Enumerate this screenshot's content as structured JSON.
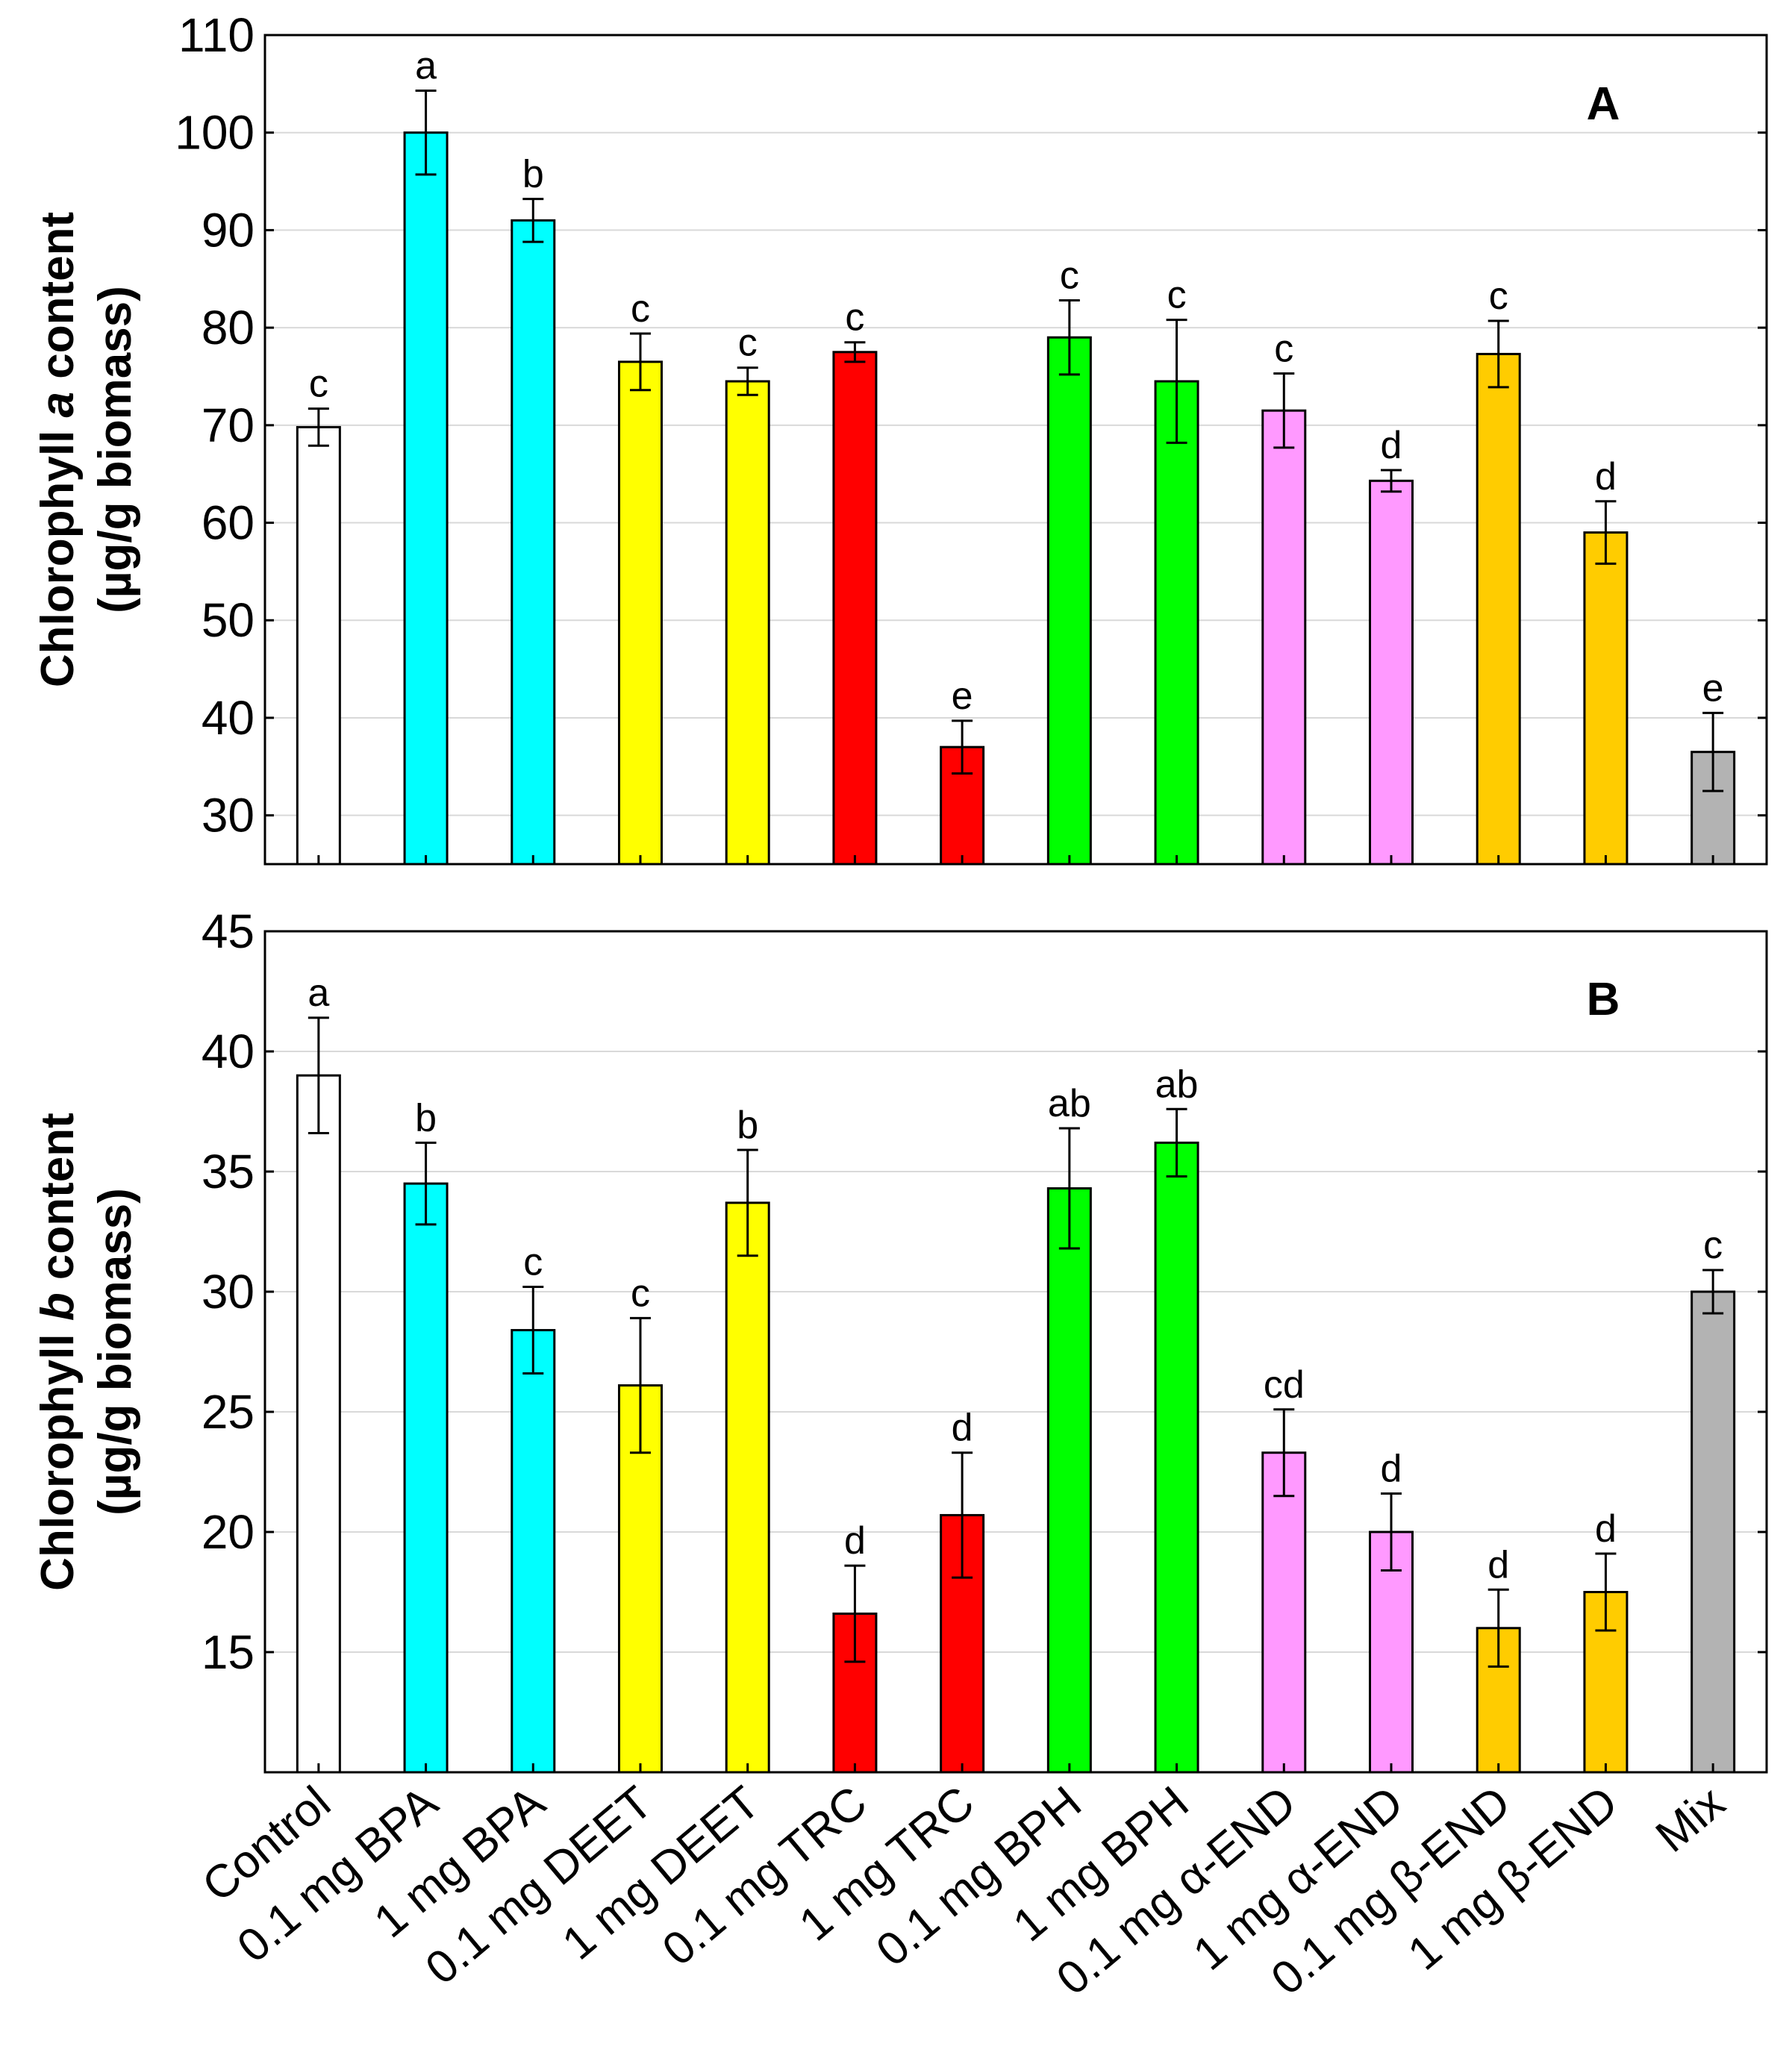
{
  "chart_data": [
    {
      "type": "bar",
      "panel": "A",
      "ylabel_line1_before": "Chlorophyll ",
      "ylabel_italic": "a",
      "ylabel_line1_after": " content",
      "ylabel_line2": "(µg/g biomass)",
      "ylim": [
        25,
        110
      ],
      "yticks": [
        30,
        40,
        50,
        60,
        70,
        80,
        90,
        100,
        110
      ],
      "grid": true,
      "categories": [
        "Control",
        "0.1 mg BPA",
        "1 mg BPA",
        "0.1 mg DEET",
        "1 mg DEET",
        "0.1 mg TRC",
        "1 mg TRC",
        "0.1 mg BPH",
        "1 mg BPH",
        "0.1 mg α-END",
        "1 mg α-END",
        "0.1 mg β-END",
        "1 mg β-END",
        "Mix"
      ],
      "values": [
        69.8,
        100.0,
        91.0,
        76.5,
        74.5,
        77.5,
        37.0,
        79.0,
        74.5,
        71.5,
        64.3,
        77.3,
        59.0,
        36.5
      ],
      "errors": [
        1.9,
        4.3,
        2.2,
        2.9,
        1.4,
        1.0,
        2.7,
        3.8,
        6.3,
        3.8,
        1.1,
        3.4,
        3.2,
        4.0
      ],
      "letters": [
        "c",
        "a",
        "b",
        "c",
        "c",
        "c",
        "e",
        "c",
        "c",
        "c",
        "d",
        "c",
        "d",
        "e"
      ],
      "colors": [
        "#ffffff",
        "#00ffff",
        "#00ffff",
        "#ffff00",
        "#ffff00",
        "#ff0000",
        "#ff0000",
        "#00ff00",
        "#00ff00",
        "#ff99ff",
        "#ff99ff",
        "#ffcc00",
        "#ffcc00",
        "#b3b3b3"
      ]
    },
    {
      "type": "bar",
      "panel": "B",
      "ylabel_line1_before": "Chlorophyll ",
      "ylabel_italic": "b",
      "ylabel_line1_after": " content",
      "ylabel_line2": "(µg/g biomass)",
      "ylim": [
        10,
        45
      ],
      "yticks": [
        15,
        20,
        25,
        30,
        35,
        40,
        45
      ],
      "grid": true,
      "categories": [
        "Control",
        "0.1 mg BPA",
        "1 mg BPA",
        "0.1 mg DEET",
        "1 mg DEET",
        "0.1 mg TRC",
        "1 mg TRC",
        "0.1 mg BPH",
        "1 mg BPH",
        "0.1 mg α-END",
        "1 mg α-END",
        "0.1 mg β-END",
        "1 mg β-END",
        "Mix"
      ],
      "values": [
        39.0,
        34.5,
        28.4,
        26.1,
        33.7,
        16.6,
        20.7,
        34.3,
        36.2,
        23.3,
        20.0,
        16.0,
        17.5,
        30.0
      ],
      "errors": [
        2.4,
        1.7,
        1.8,
        2.8,
        2.2,
        2.0,
        2.6,
        2.5,
        1.4,
        1.8,
        1.6,
        1.6,
        1.6,
        0.9
      ],
      "letters": [
        "a",
        "b",
        "c",
        "c",
        "b",
        "d",
        "d",
        "ab",
        "ab",
        "cd",
        "d",
        "d",
        "d",
        "c"
      ],
      "colors": [
        "#ffffff",
        "#00ffff",
        "#00ffff",
        "#ffff00",
        "#ffff00",
        "#ff0000",
        "#ff0000",
        "#00ff00",
        "#00ff00",
        "#ff99ff",
        "#ff99ff",
        "#ffcc00",
        "#ffcc00",
        "#b3b3b3"
      ]
    }
  ]
}
